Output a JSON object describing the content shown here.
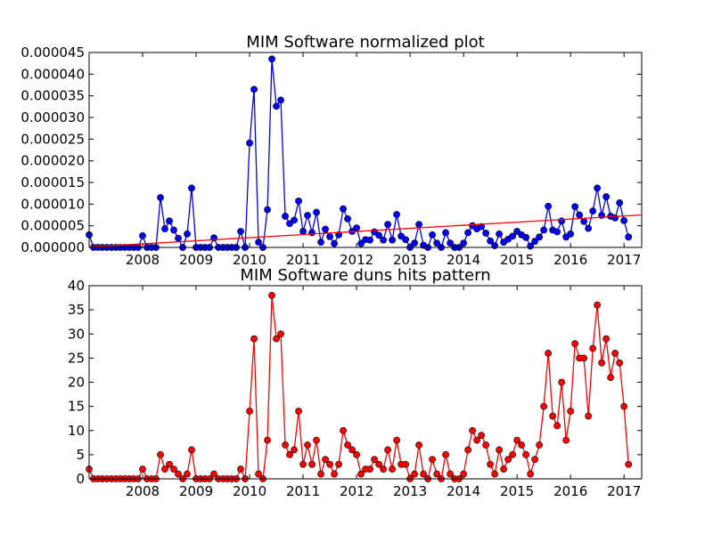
{
  "chart_data": [
    {
      "type": "line",
      "title": "MIM Software normalized plot",
      "xlabel": "",
      "ylabel": "",
      "xlim": [
        2007.0,
        2017.33
      ],
      "ylim": [
        0,
        4.5e-05
      ],
      "x_ticks": [
        2008,
        2009,
        2010,
        2011,
        2012,
        2013,
        2014,
        2015,
        2016,
        2017
      ],
      "x_tick_labels": [
        "2008",
        "2009",
        "2010",
        "2011",
        "2012",
        "2013",
        "2014",
        "2015",
        "2016",
        "2017"
      ],
      "y_ticks": [
        0,
        5e-06,
        1e-05,
        1.5e-05,
        2e-05,
        2.5e-05,
        3e-05,
        3.5e-05,
        4e-05,
        4.5e-05
      ],
      "y_tick_labels": [
        "0.000000",
        "0.000005",
        "0.000010",
        "0.000015",
        "0.000020",
        "0.000025",
        "0.000030",
        "0.000035",
        "0.000040",
        "0.000045"
      ],
      "grid": false,
      "series": [
        {
          "color": "#0000ff",
          "marker": "circle",
          "x_start": 2007.0,
          "x_step": 0.08333,
          "values": [
            2.9e-06,
            0,
            0,
            0,
            0,
            0,
            0,
            0,
            0,
            0,
            0,
            0,
            2.7e-06,
            0,
            0,
            0,
            1.15e-05,
            4.3e-06,
            6.1e-06,
            4e-06,
            2.1e-06,
            0,
            3.1e-06,
            1.37e-05,
            0,
            0,
            0,
            0,
            2.2e-06,
            0,
            0,
            0,
            0,
            0,
            3.7e-06,
            0,
            2.41e-05,
            3.65e-05,
            1.2e-06,
            0,
            8.7e-06,
            4.35e-05,
            3.26e-05,
            3.4e-05,
            7.2e-06,
            5.5e-06,
            6.3e-06,
            1.07e-05,
            3.7e-06,
            7.4e-06,
            3.4e-06,
            8.1e-06,
            1.2e-06,
            4.2e-06,
            2.5e-06,
            9e-07,
            2.9e-06,
            8.9e-06,
            6.6e-06,
            3.7e-06,
            4.5e-06,
            9e-07,
            1.8e-06,
            1.7e-06,
            3.6e-06,
            2.8e-06,
            1.7e-06,
            5.3e-06,
            1.7e-06,
            7.6e-06,
            2.6e-06,
            1.8e-06,
            0,
            1e-06,
            5.3e-06,
            5e-07,
            0,
            2.9e-06,
            1e-06,
            0,
            3.4e-06,
            1e-06,
            0,
            0,
            1e-06,
            3.4e-06,
            5e-06,
            4.3e-06,
            4.8e-06,
            3.3e-06,
            1.5e-06,
            4e-07,
            3.1e-06,
            1.2e-06,
            1.9e-06,
            2.6e-06,
            3.7e-06,
            2.9e-06,
            2.3e-06,
            3e-07,
            1.4e-06,
            2.4e-06,
            4e-06,
            9.5e-06,
            4e-06,
            3.6e-06,
            6.1e-06,
            2.4e-06,
            3.1e-06,
            9.4e-06,
            7.5e-06,
            6e-06,
            4.4e-06,
            8.4e-06,
            1.37e-05,
            7.4e-06,
            1.17e-05,
            7.2e-06,
            6.8e-06,
            1.03e-05,
            6.2e-06,
            2.4e-06
          ]
        },
        {
          "color": "#ff0000",
          "marker": "none",
          "x": [
            2007.0,
            2017.33
          ],
          "values": [
            1e-07,
            7.5e-06
          ]
        }
      ]
    },
    {
      "type": "line",
      "title": "MIM Software duns hits pattern",
      "xlabel": "",
      "ylabel": "",
      "xlim": [
        2007.0,
        2017.33
      ],
      "ylim": [
        0,
        40
      ],
      "x_ticks": [
        2008,
        2009,
        2010,
        2011,
        2012,
        2013,
        2014,
        2015,
        2016,
        2017
      ],
      "x_tick_labels": [
        "2008",
        "2009",
        "2010",
        "2011",
        "2012",
        "2013",
        "2014",
        "2015",
        "2016",
        "2017"
      ],
      "y_ticks": [
        0,
        5,
        10,
        15,
        20,
        25,
        30,
        35,
        40
      ],
      "y_tick_labels": [
        "0",
        "5",
        "10",
        "15",
        "20",
        "25",
        "30",
        "35",
        "40"
      ],
      "grid": false,
      "series": [
        {
          "color": "#ff0000",
          "marker": "circle",
          "x_start": 2007.0,
          "x_step": 0.08333,
          "values": [
            2,
            0,
            0,
            0,
            0,
            0,
            0,
            0,
            0,
            0,
            0,
            0,
            2,
            0,
            0,
            0,
            5,
            2,
            3,
            2,
            1,
            0,
            1,
            6,
            0,
            0,
            0,
            0,
            1,
            0,
            0,
            0,
            0,
            0,
            2,
            0,
            14,
            29,
            1,
            0,
            8,
            38,
            29,
            30,
            7,
            5,
            6,
            14,
            3,
            7,
            3,
            8,
            1,
            4,
            3,
            1,
            3,
            10,
            7,
            6,
            5,
            1,
            2,
            2,
            4,
            3,
            2,
            6,
            2,
            8,
            3,
            3,
            0,
            1,
            7,
            1,
            0,
            4,
            1,
            0,
            5,
            1,
            0,
            0,
            1,
            6,
            10,
            8,
            9,
            7,
            3,
            1,
            6,
            2,
            4,
            5,
            8,
            7,
            5,
            1,
            4,
            7,
            15,
            26,
            13,
            11,
            20,
            8,
            14,
            28,
            25,
            25,
            13,
            27,
            36,
            24,
            29,
            21,
            26,
            24,
            15,
            3
          ]
        }
      ]
    }
  ]
}
